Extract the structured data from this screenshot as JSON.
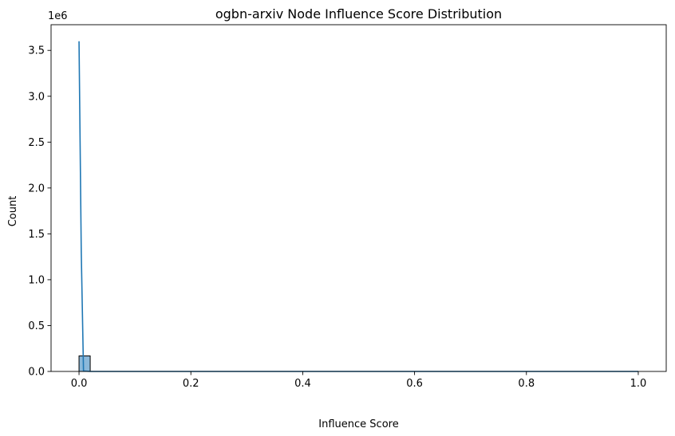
{
  "chart_data": {
    "type": "histogram",
    "title": "ogbn-arxiv Node Influence Score Distribution",
    "xlabel": "Influence Score",
    "ylabel": "Count",
    "y_multiplier_label": "1e6",
    "y_scale": 1000000,
    "xlim": [
      -0.05,
      1.05
    ],
    "ylim": [
      0,
      3780000
    ],
    "x_ticks": [
      0.0,
      0.2,
      0.4,
      0.6,
      0.8,
      1.0
    ],
    "x_tick_labels": [
      "0.0",
      "0.2",
      "0.4",
      "0.6",
      "0.8",
      "1.0"
    ],
    "y_ticks": [
      0,
      500000,
      1000000,
      1500000,
      2000000,
      2500000,
      3000000,
      3500000
    ],
    "y_tick_labels": [
      "0.0",
      "0.5",
      "1.0",
      "1.5",
      "2.0",
      "2.5",
      "3.0",
      "3.5"
    ],
    "bins": [
      {
        "x0": 0.0,
        "x1": 0.02,
        "count": 169000
      }
    ],
    "kde": {
      "x": [
        0.0,
        0.004,
        0.008,
        0.02,
        0.1,
        0.3,
        0.5,
        0.7,
        0.9,
        1.0
      ],
      "y": [
        3600000,
        1300000,
        5000,
        0,
        0,
        0,
        0,
        0,
        0,
        0
      ]
    },
    "colors": {
      "bar_fill": "#8bb8da",
      "bar_edge": "#000000",
      "kde_line": "#1f77b4"
    },
    "grid": false,
    "legend": "none"
  }
}
